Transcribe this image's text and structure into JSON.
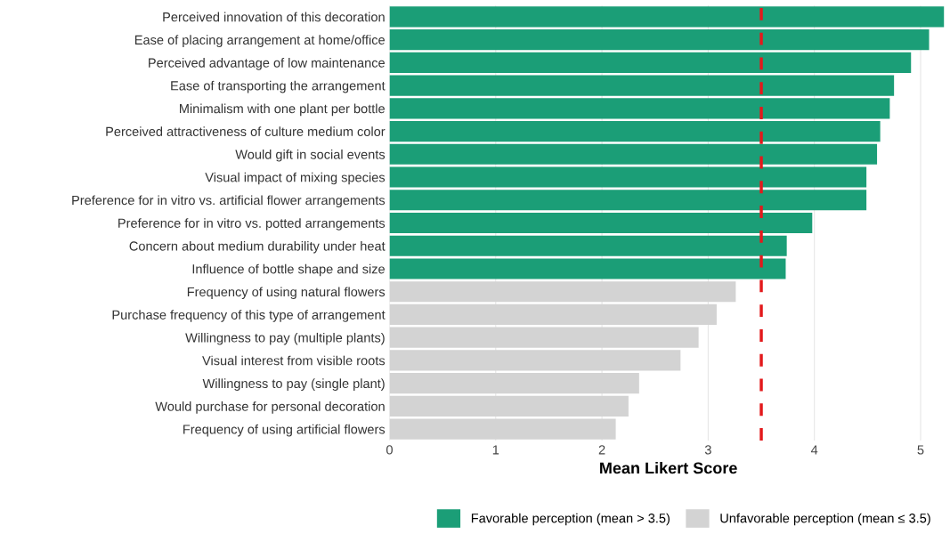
{
  "chart_data": {
    "type": "bar",
    "orientation": "horizontal",
    "xlabel": "Mean Likert Score",
    "categories": [
      "Perceived innovation of this decoration",
      "Ease of placing arrangement at home/office",
      "Perceived advantage of low maintenance",
      "Ease of transporting the arrangement",
      "Minimalism with one plant per bottle",
      "Perceived attractiveness of culture medium color",
      "Would gift in social events",
      "Visual impact of mixing species",
      "Preference for in vitro vs. artificial flower arrangements",
      "Preference for in vitro vs. potted arrangements",
      "Concern about medium durability under heat",
      "Influence of bottle shape and size",
      "Frequency of using natural flowers",
      "Purchase frequency of this type of arrangement",
      "Willingness to pay (multiple plants)",
      "Visual interest from visible roots",
      "Willingness to pay (single plant)",
      "Would purchase for personal decoration",
      "Frequency of using artificial flowers"
    ],
    "series": [
      {
        "name": "Favorable perception (mean > 3.5)",
        "color": "#1b9e77",
        "values": [
          5.22,
          5.08,
          4.91,
          4.75,
          4.71,
          4.62,
          4.59,
          4.49,
          4.49,
          3.98,
          3.74,
          3.73,
          null,
          null,
          null,
          null,
          null,
          null,
          null
        ]
      },
      {
        "name": "Unfavorable perception (mean ≤ 3.5)",
        "color": "#d3d3d3",
        "values": [
          null,
          null,
          null,
          null,
          null,
          null,
          null,
          null,
          null,
          null,
          null,
          null,
          3.26,
          3.08,
          2.91,
          2.74,
          2.35,
          2.25,
          2.13
        ]
      }
    ],
    "xlim": [
      0,
      5.25
    ],
    "xticks": [
      0,
      1,
      2,
      3,
      4,
      5
    ],
    "ref_lines": [
      {
        "axis": "x",
        "value": 3.5,
        "color": "#e31a1c",
        "line_style": "dashed"
      }
    ],
    "grid": "x",
    "legend": "bottom"
  }
}
